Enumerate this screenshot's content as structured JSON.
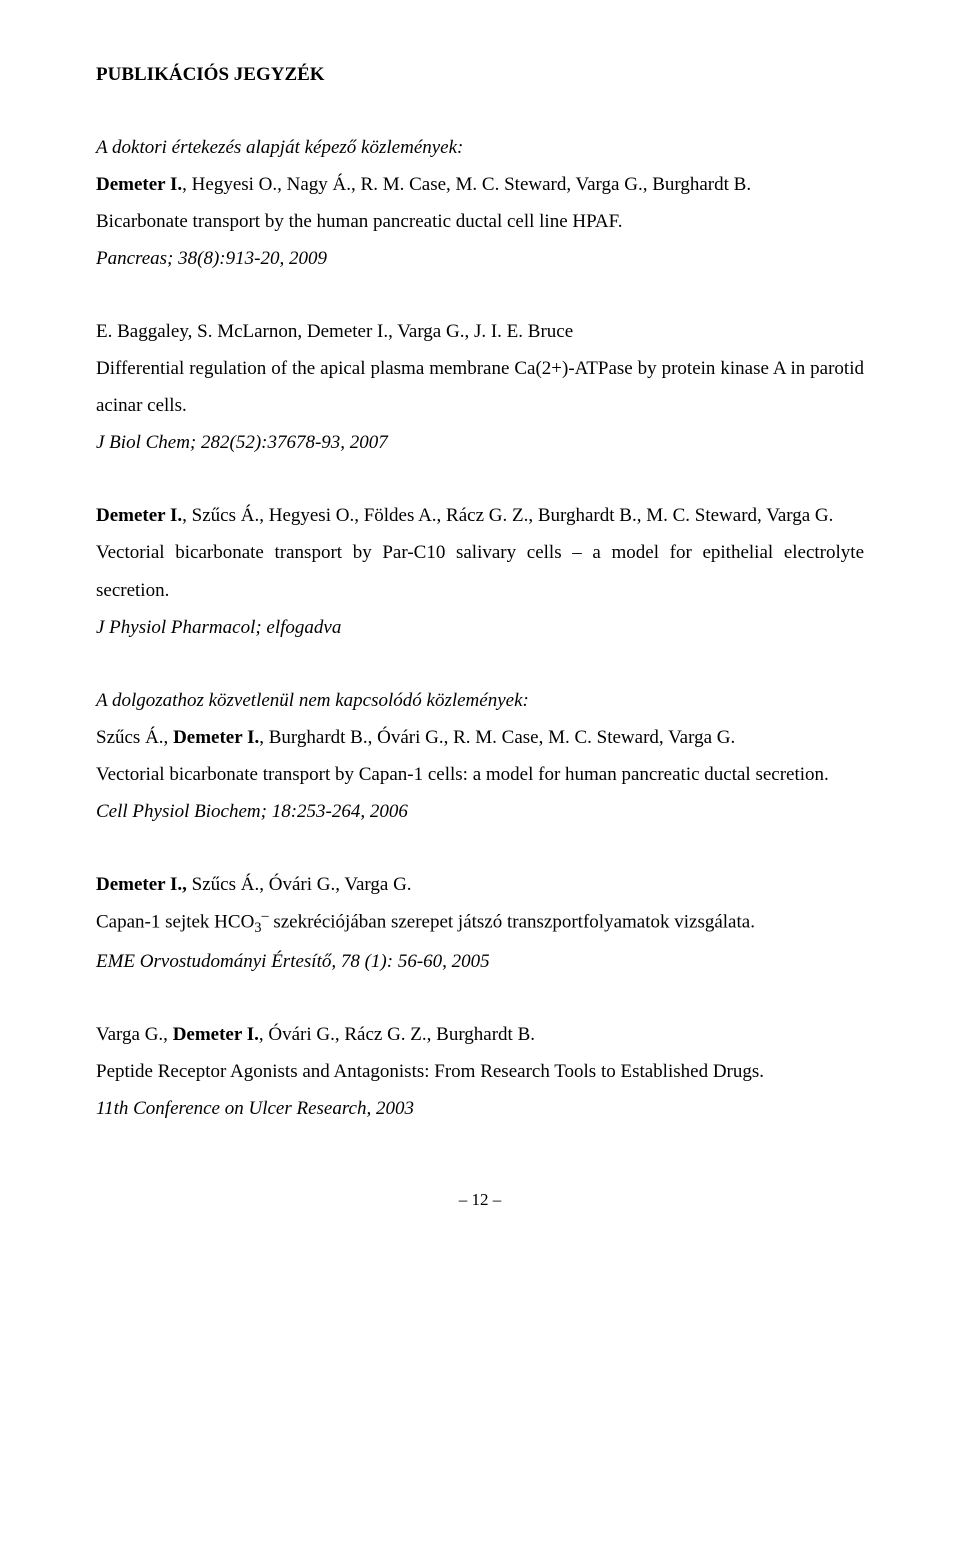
{
  "heading": "PUBLIKÁCIÓS JEGYZÉK",
  "sub1": "A doktori értekezés alapját képező közlemények:",
  "e1": {
    "a_pre": "Demeter I.",
    "a_post": ", Hegyesi O., Nagy Á., R. M. Case, M. C. Steward, Varga G., Burghardt B.",
    "t": "Bicarbonate transport by the human pancreatic ductal cell line HPAF.",
    "c": "Pancreas; 38(8):913-20, 2009"
  },
  "e2": {
    "a": "E. Baggaley, S. McLarnon, Demeter I., Varga G., J. I. E. Bruce",
    "t": "Differential regulation of the apical plasma membrane Ca(2+)-ATPase by protein kinase A in parotid acinar cells.",
    "c": "J Biol Chem; 282(52):37678-93, 2007"
  },
  "e3": {
    "a_pre": "Demeter I.",
    "a_post": ", Szűcs Á., Hegyesi O., Földes A., Rácz G. Z., Burghardt B., M. C. Steward, Varga G.",
    "t": "Vectorial bicarbonate transport by Par-C10 salivary cells – a model for epithelial electrolyte secretion.",
    "c": "J Physiol Pharmacol; elfogadva"
  },
  "sub2": "A dolgozathoz közvetlenül nem kapcsolódó közlemények:",
  "e4": {
    "a_pre": "Szűcs Á., ",
    "a_bold": "Demeter I.",
    "a_post": ", Burghardt B., Óvári G., R. M. Case, M. C. Steward, Varga G.",
    "t": "Vectorial bicarbonate transport by Capan-1 cells: a model for human pancreatic ductal secretion.",
    "c": "Cell Physiol Biochem; 18:253-264, 2006"
  },
  "e5": {
    "a_pre": "Demeter I.,",
    "a_post": " Szűcs Á., Óvári G., Varga G.",
    "t_pre": "Capan-1 sejtek HCO",
    "t_post": " szekréciójában szerepet játszó transzportfolyamatok vizsgálata.",
    "c": "EME Orvostudományi Értesítő, 78 (1): 56-60, 2005"
  },
  "e6": {
    "a_pre": "Varga G., ",
    "a_bold": "Demeter I.",
    "a_post": ", Óvári G., Rácz G. Z., Burghardt B.",
    "t": "Peptide Receptor Agonists and Antagonists: From Research Tools to Established Drugs.",
    "c": "11th Conference on Ulcer Research, 2003"
  },
  "pagefoot": "– 12 –"
}
